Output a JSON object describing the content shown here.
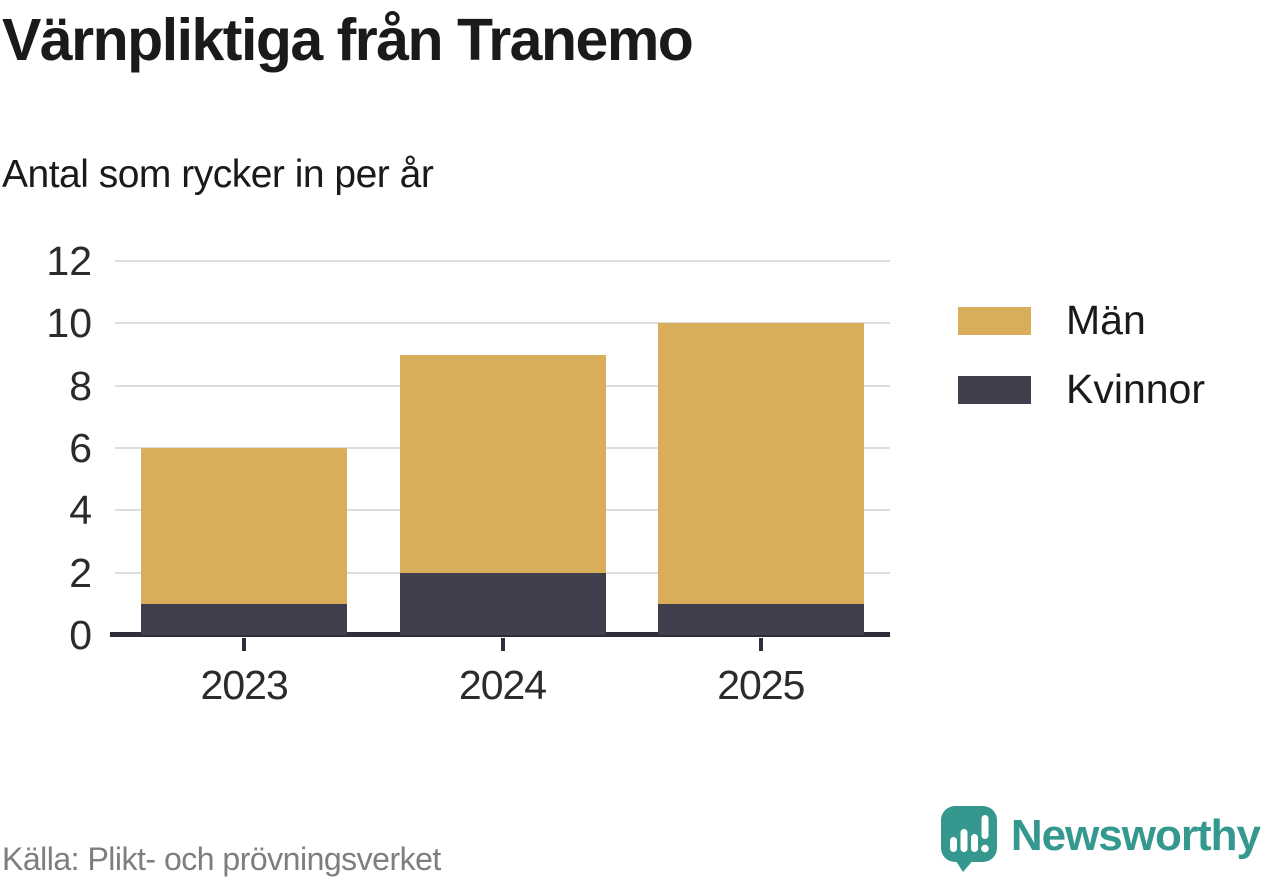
{
  "title": "Värnpliktiga från Tranemo",
  "subtitle": "Antal som rycker in per år",
  "chart_data": {
    "type": "bar",
    "stacked": true,
    "categories": [
      "2023",
      "2024",
      "2025"
    ],
    "series": [
      {
        "name": "Män",
        "values": [
          5,
          7,
          9
        ],
        "color": "#d9ae5b"
      },
      {
        "name": "Kvinnor",
        "values": [
          1,
          2,
          1
        ],
        "color": "#413f4d"
      }
    ],
    "stack_order_bottom_to_top": [
      "Kvinnor",
      "Män"
    ],
    "totals": [
      6,
      9,
      10
    ],
    "xlabel": "",
    "ylabel": "",
    "ylim": [
      0,
      12
    ],
    "yticks": [
      0,
      2,
      4,
      6,
      8,
      10,
      12
    ],
    "grid": "horizontal",
    "legend_position": "right"
  },
  "footer": {
    "source": "Källa: Plikt- och prövningsverket",
    "brand": "Newsworthy"
  },
  "colors": {
    "men": "#d9ae5b",
    "women": "#413f4d",
    "axis": "#2e2d39",
    "gridline": "#dddddd",
    "text": "#1a1a1a",
    "muted_text": "#7e7e7e",
    "brand_teal": "#35988f"
  }
}
